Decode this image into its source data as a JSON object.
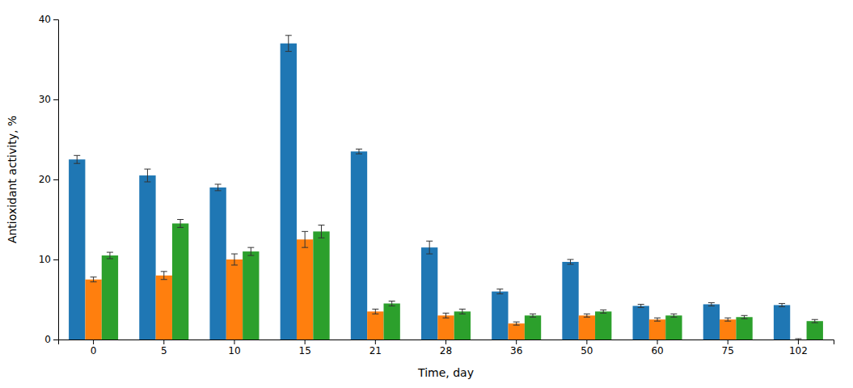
{
  "chart_data": {
    "type": "bar",
    "categories": [
      "0",
      "5",
      "10",
      "15",
      "21",
      "28",
      "36",
      "50",
      "60",
      "75",
      "102"
    ],
    "series": [
      {
        "values": [
          22.5,
          20.5,
          19.0,
          37.0,
          23.5,
          11.5,
          6.0,
          9.7,
          4.2,
          4.4,
          4.3
        ],
        "errors": [
          0.5,
          0.8,
          0.4,
          1.0,
          0.3,
          0.8,
          0.3,
          0.3,
          0.2,
          0.2,
          0.2
        ]
      },
      {
        "values": [
          7.5,
          8.0,
          10.0,
          12.5,
          3.5,
          3.0,
          2.0,
          3.0,
          2.5,
          2.5,
          0.0
        ],
        "errors": [
          0.3,
          0.5,
          0.7,
          1.0,
          0.3,
          0.3,
          0.2,
          0.2,
          0.2,
          0.2,
          0.1
        ]
      },
      {
        "values": [
          10.5,
          14.5,
          11.0,
          13.5,
          4.5,
          3.5,
          3.0,
          3.5,
          3.0,
          2.8,
          2.3
        ],
        "errors": [
          0.4,
          0.5,
          0.5,
          0.8,
          0.3,
          0.3,
          0.2,
          0.2,
          0.2,
          0.2,
          0.2
        ]
      }
    ],
    "xlabel": "Time, day",
    "ylabel": "Antioxidant activity, %",
    "ylim": [
      0,
      40
    ],
    "yticks": [
      0,
      10,
      20,
      30,
      40
    ],
    "grid": false
  }
}
